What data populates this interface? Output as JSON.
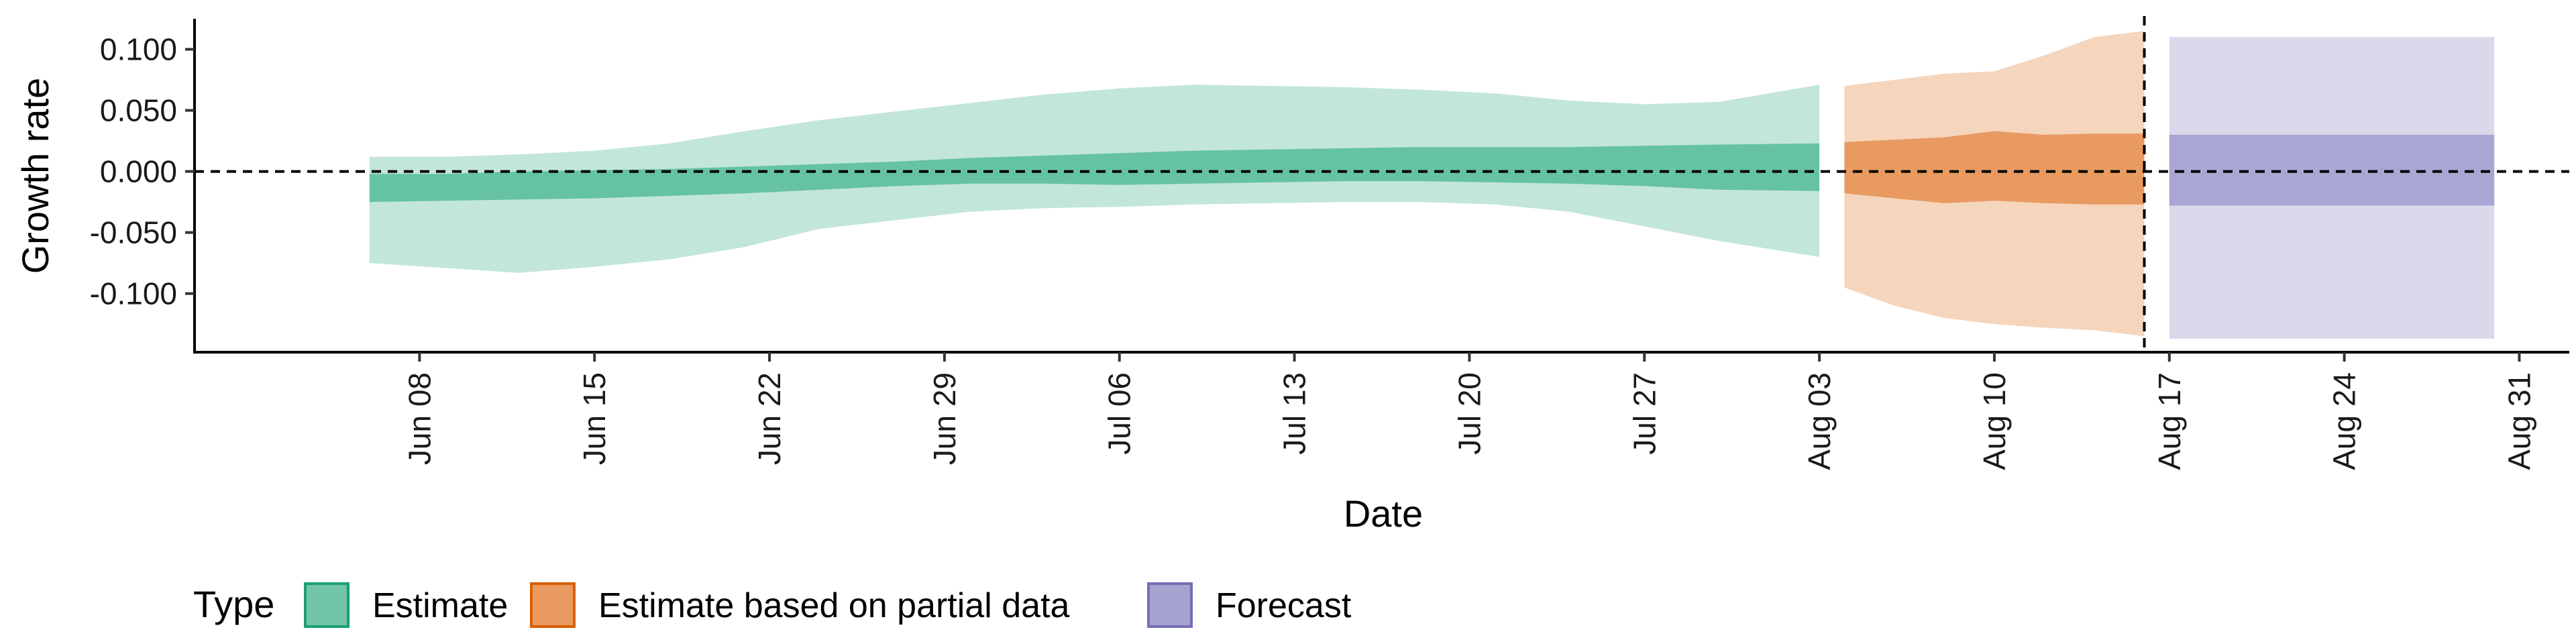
{
  "chart_data": {
    "type": "area",
    "title": "",
    "xlabel": "Date",
    "ylabel": "Growth rate",
    "x_start": "2020-06-06",
    "ylim": [
      -0.148,
      0.125
    ],
    "xlim": [
      "2020-05-30",
      "2020-09-02"
    ],
    "yticks": [
      0.1,
      0.05,
      0.0,
      -0.05,
      -0.1
    ],
    "ytick_labels": [
      "0.100",
      "0.050",
      "0.000",
      "-0.050",
      "-0.100"
    ],
    "xticks": [
      "2020-06-08",
      "2020-06-15",
      "2020-06-22",
      "2020-06-29",
      "2020-07-06",
      "2020-07-13",
      "2020-07-20",
      "2020-07-27",
      "2020-08-03",
      "2020-08-10",
      "2020-08-17",
      "2020-08-24",
      "2020-08-31"
    ],
    "xtick_labels": [
      "Jun 08",
      "Jun 15",
      "Jun 22",
      "Jun 29",
      "Jul 06",
      "Jul 13",
      "Jul 20",
      "Jul 27",
      "Aug 03",
      "Aug 10",
      "Aug 17",
      "Aug 24",
      "Aug 31"
    ],
    "hline_y": 0.0,
    "vline_date": "2020-08-16",
    "grid": false,
    "legend": {
      "title": "Type",
      "placement": "bottom-left",
      "items": [
        "Estimate",
        "Estimate based on partial data",
        "Forecast"
      ]
    },
    "colors": {
      "estimate_inner": "#66c2a5",
      "estimate_outer": "#c2e6da",
      "estimate_key_fill": "#73c5a8",
      "estimate_key_border": "#1b9e77",
      "partial_inner": "#e89a60",
      "partial_outer": "#f5d5bc",
      "partial_key_fill": "#eb9a5f",
      "partial_key_border": "#d95f02",
      "forecast_inner": "#a9a6d3",
      "forecast_outer": "#dad9ec",
      "forecast_key_fill": "#a7a3d1",
      "forecast_key_border": "#7570b3"
    },
    "series": [
      {
        "name": "Estimate",
        "dates": [
          "2020-06-06",
          "2020-06-09",
          "2020-06-12",
          "2020-06-15",
          "2020-06-18",
          "2020-06-21",
          "2020-06-24",
          "2020-06-27",
          "2020-06-30",
          "2020-07-03",
          "2020-07-06",
          "2020-07-09",
          "2020-07-12",
          "2020-07-15",
          "2020-07-18",
          "2020-07-21",
          "2020-07-24",
          "2020-07-27",
          "2020-07-30",
          "2020-08-03"
        ],
        "lower_90": [
          -0.075,
          -0.079,
          -0.083,
          -0.078,
          -0.072,
          -0.062,
          -0.047,
          -0.04,
          -0.033,
          -0.03,
          -0.029,
          -0.027,
          -0.026,
          -0.025,
          -0.025,
          -0.027,
          -0.033,
          -0.045,
          -0.057,
          -0.07
        ],
        "lower_50": [
          -0.025,
          -0.024,
          -0.023,
          -0.022,
          -0.02,
          -0.018,
          -0.015,
          -0.012,
          -0.01,
          -0.01,
          -0.011,
          -0.01,
          -0.009,
          -0.008,
          -0.008,
          -0.009,
          -0.01,
          -0.012,
          -0.015,
          -0.016
        ],
        "upper_50": [
          -0.002,
          -0.002,
          0.0,
          0.001,
          0.002,
          0.004,
          0.006,
          0.008,
          0.011,
          0.013,
          0.015,
          0.017,
          0.018,
          0.019,
          0.02,
          0.02,
          0.02,
          0.021,
          0.022,
          0.023
        ],
        "upper_90": [
          0.012,
          0.012,
          0.014,
          0.017,
          0.023,
          0.033,
          0.042,
          0.049,
          0.056,
          0.063,
          0.068,
          0.071,
          0.07,
          0.069,
          0.067,
          0.064,
          0.058,
          0.055,
          0.057,
          0.071
        ]
      },
      {
        "name": "Estimate based on partial data",
        "dates": [
          "2020-08-04",
          "2020-08-06",
          "2020-08-08",
          "2020-08-10",
          "2020-08-12",
          "2020-08-14",
          "2020-08-16"
        ],
        "lower_90": [
          -0.095,
          -0.11,
          -0.12,
          -0.125,
          -0.128,
          -0.13,
          -0.135
        ],
        "lower_50": [
          -0.018,
          -0.022,
          -0.026,
          -0.024,
          -0.026,
          -0.027,
          -0.027
        ],
        "upper_50": [
          0.024,
          0.026,
          0.028,
          0.033,
          0.03,
          0.031,
          0.031
        ],
        "upper_90": [
          0.07,
          0.075,
          0.08,
          0.082,
          0.095,
          0.11,
          0.115
        ]
      },
      {
        "name": "Forecast",
        "dates": [
          "2020-08-17",
          "2020-08-30"
        ],
        "lower_90": [
          -0.137,
          -0.137
        ],
        "lower_50": [
          -0.028,
          -0.028
        ],
        "upper_50": [
          0.03,
          0.03
        ],
        "upper_90": [
          0.11,
          0.11
        ]
      }
    ]
  }
}
